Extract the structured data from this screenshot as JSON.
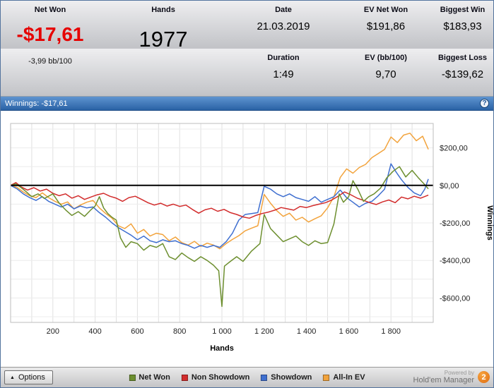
{
  "header": {
    "cells": {
      "date": {
        "label": "Date",
        "value": "21.03.2019"
      },
      "duration": {
        "label": "Duration",
        "value": "1:49"
      },
      "net_won": {
        "label": "Net Won",
        "value": "-$17,61",
        "sub": "-3,99 bb/100",
        "value_color": "#e60000"
      },
      "hands": {
        "label": "Hands",
        "value": "1977"
      },
      "ev_net_won": {
        "label": "EV Net Won",
        "value": "$191,86"
      },
      "ev_bb100": {
        "label": "EV (bb/100)",
        "value": "9,70"
      },
      "biggest_win": {
        "label": "Biggest Win",
        "value": "$183,93"
      },
      "biggest_loss": {
        "label": "Biggest Loss",
        "value": "-$139,62"
      }
    }
  },
  "titlebar": {
    "title": "Winnings: -$17,61",
    "help_icon": "?"
  },
  "chart_data": {
    "type": "line",
    "title": "Winnings: -$17,61",
    "xlabel": "Hands",
    "ylabel": "Winnings",
    "xlim": [
      0,
      2000
    ],
    "ylim": [
      -730,
      330
    ],
    "grid": true,
    "zero_line": 0,
    "legend_position": "bottom",
    "x_ticks": [
      {
        "v": 200,
        "label": "200"
      },
      {
        "v": 400,
        "label": "400"
      },
      {
        "v": 600,
        "label": "600"
      },
      {
        "v": 800,
        "label": "800"
      },
      {
        "v": 1000,
        "label": "1 000"
      },
      {
        "v": 1200,
        "label": "1 200"
      },
      {
        "v": 1400,
        "label": "1 400"
      },
      {
        "v": 1600,
        "label": "1 600"
      },
      {
        "v": 1800,
        "label": "1 800"
      }
    ],
    "y_ticks": [
      {
        "v": 200,
        "label": "$200,00"
      },
      {
        "v": 0,
        "label": "$0,00"
      },
      {
        "v": -200,
        "label": "-$200,00"
      },
      {
        "v": -400,
        "label": "-$400,00"
      },
      {
        "v": -600,
        "label": "-$600,00"
      }
    ],
    "series": [
      {
        "name": "Net Won",
        "color": "#6d8f2f",
        "points": [
          [
            0,
            0
          ],
          [
            25,
            8
          ],
          [
            50,
            -12
          ],
          [
            75,
            -35
          ],
          [
            100,
            -60
          ],
          [
            130,
            -45
          ],
          [
            160,
            -70
          ],
          [
            200,
            -45
          ],
          [
            230,
            -95
          ],
          [
            260,
            -130
          ],
          [
            290,
            -160
          ],
          [
            320,
            -140
          ],
          [
            350,
            -165
          ],
          [
            380,
            -130
          ],
          [
            400,
            -110
          ],
          [
            420,
            -60
          ],
          [
            440,
            -120
          ],
          [
            460,
            -150
          ],
          [
            480,
            -170
          ],
          [
            500,
            -185
          ],
          [
            520,
            -280
          ],
          [
            545,
            -330
          ],
          [
            570,
            -300
          ],
          [
            600,
            -310
          ],
          [
            630,
            -345
          ],
          [
            660,
            -320
          ],
          [
            690,
            -330
          ],
          [
            720,
            -310
          ],
          [
            750,
            -380
          ],
          [
            780,
            -395
          ],
          [
            810,
            -360
          ],
          [
            840,
            -385
          ],
          [
            870,
            -405
          ],
          [
            900,
            -380
          ],
          [
            930,
            -400
          ],
          [
            960,
            -425
          ],
          [
            985,
            -455
          ],
          [
            1000,
            -645
          ],
          [
            1012,
            -430
          ],
          [
            1040,
            -405
          ],
          [
            1070,
            -380
          ],
          [
            1100,
            -405
          ],
          [
            1140,
            -350
          ],
          [
            1180,
            -310
          ],
          [
            1200,
            -155
          ],
          [
            1230,
            -230
          ],
          [
            1260,
            -265
          ],
          [
            1290,
            -300
          ],
          [
            1320,
            -285
          ],
          [
            1350,
            -270
          ],
          [
            1380,
            -300
          ],
          [
            1410,
            -320
          ],
          [
            1440,
            -295
          ],
          [
            1470,
            -310
          ],
          [
            1500,
            -305
          ],
          [
            1530,
            -205
          ],
          [
            1555,
            -45
          ],
          [
            1575,
            -90
          ],
          [
            1600,
            -60
          ],
          [
            1620,
            25
          ],
          [
            1645,
            -25
          ],
          [
            1670,
            -85
          ],
          [
            1695,
            -60
          ],
          [
            1720,
            -45
          ],
          [
            1750,
            -15
          ],
          [
            1780,
            40
          ],
          [
            1810,
            75
          ],
          [
            1840,
            100
          ],
          [
            1870,
            45
          ],
          [
            1900,
            80
          ],
          [
            1930,
            40
          ],
          [
            1955,
            10
          ],
          [
            1977,
            -18
          ]
        ]
      },
      {
        "name": "Non Showdown",
        "color": "#d22c2c",
        "points": [
          [
            0,
            0
          ],
          [
            25,
            15
          ],
          [
            50,
            -8
          ],
          [
            80,
            -25
          ],
          [
            110,
            -12
          ],
          [
            140,
            -30
          ],
          [
            170,
            -20
          ],
          [
            200,
            -42
          ],
          [
            230,
            -55
          ],
          [
            260,
            -45
          ],
          [
            290,
            -68
          ],
          [
            320,
            -55
          ],
          [
            350,
            -75
          ],
          [
            380,
            -62
          ],
          [
            410,
            -50
          ],
          [
            440,
            -42
          ],
          [
            470,
            -58
          ],
          [
            500,
            -68
          ],
          [
            530,
            -85
          ],
          [
            560,
            -65
          ],
          [
            590,
            -58
          ],
          [
            620,
            -75
          ],
          [
            650,
            -92
          ],
          [
            680,
            -105
          ],
          [
            710,
            -95
          ],
          [
            740,
            -110
          ],
          [
            770,
            -100
          ],
          [
            800,
            -112
          ],
          [
            830,
            -105
          ],
          [
            860,
            -128
          ],
          [
            890,
            -148
          ],
          [
            920,
            -130
          ],
          [
            950,
            -122
          ],
          [
            980,
            -138
          ],
          [
            1010,
            -128
          ],
          [
            1040,
            -145
          ],
          [
            1070,
            -155
          ],
          [
            1100,
            -168
          ],
          [
            1130,
            -175
          ],
          [
            1160,
            -160
          ],
          [
            1190,
            -150
          ],
          [
            1220,
            -142
          ],
          [
            1250,
            -132
          ],
          [
            1280,
            -118
          ],
          [
            1310,
            -125
          ],
          [
            1340,
            -132
          ],
          [
            1370,
            -112
          ],
          [
            1400,
            -118
          ],
          [
            1430,
            -108
          ],
          [
            1460,
            -100
          ],
          [
            1490,
            -92
          ],
          [
            1520,
            -78
          ],
          [
            1550,
            -58
          ],
          [
            1580,
            -35
          ],
          [
            1610,
            -50
          ],
          [
            1640,
            -68
          ],
          [
            1670,
            -80
          ],
          [
            1700,
            -92
          ],
          [
            1730,
            -102
          ],
          [
            1760,
            -88
          ],
          [
            1790,
            -78
          ],
          [
            1820,
            -92
          ],
          [
            1850,
            -62
          ],
          [
            1880,
            -72
          ],
          [
            1910,
            -58
          ],
          [
            1940,
            -68
          ],
          [
            1977,
            -52
          ]
        ]
      },
      {
        "name": "Showdown",
        "color": "#3f6fd0",
        "points": [
          [
            0,
            0
          ],
          [
            30,
            -18
          ],
          [
            60,
            -45
          ],
          [
            90,
            -65
          ],
          [
            120,
            -80
          ],
          [
            150,
            -60
          ],
          [
            180,
            -85
          ],
          [
            210,
            -100
          ],
          [
            240,
            -115
          ],
          [
            270,
            -100
          ],
          [
            300,
            -125
          ],
          [
            330,
            -110
          ],
          [
            360,
            -120
          ],
          [
            390,
            -115
          ],
          [
            420,
            -145
          ],
          [
            450,
            -170
          ],
          [
            480,
            -200
          ],
          [
            510,
            -225
          ],
          [
            540,
            -245
          ],
          [
            570,
            -265
          ],
          [
            600,
            -290
          ],
          [
            630,
            -270
          ],
          [
            660,
            -295
          ],
          [
            690,
            -305
          ],
          [
            720,
            -290
          ],
          [
            750,
            -300
          ],
          [
            780,
            -295
          ],
          [
            810,
            -310
          ],
          [
            840,
            -320
          ],
          [
            870,
            -335
          ],
          [
            900,
            -320
          ],
          [
            930,
            -330
          ],
          [
            960,
            -320
          ],
          [
            990,
            -330
          ],
          [
            1020,
            -300
          ],
          [
            1050,
            -255
          ],
          [
            1080,
            -185
          ],
          [
            1110,
            -155
          ],
          [
            1140,
            -150
          ],
          [
            1170,
            -145
          ],
          [
            1200,
            -5
          ],
          [
            1230,
            -20
          ],
          [
            1260,
            -45
          ],
          [
            1290,
            -60
          ],
          [
            1320,
            -45
          ],
          [
            1350,
            -65
          ],
          [
            1380,
            -75
          ],
          [
            1410,
            -85
          ],
          [
            1440,
            -60
          ],
          [
            1470,
            -90
          ],
          [
            1500,
            -75
          ],
          [
            1530,
            -60
          ],
          [
            1560,
            -25
          ],
          [
            1590,
            -65
          ],
          [
            1620,
            -90
          ],
          [
            1650,
            -115
          ],
          [
            1680,
            -95
          ],
          [
            1710,
            -85
          ],
          [
            1740,
            -55
          ],
          [
            1770,
            -20
          ],
          [
            1800,
            115
          ],
          [
            1825,
            70
          ],
          [
            1850,
            30
          ],
          [
            1880,
            -10
          ],
          [
            1910,
            -40
          ],
          [
            1940,
            -55
          ],
          [
            1960,
            -20
          ],
          [
            1977,
            34
          ]
        ]
      },
      {
        "name": "All-In EV",
        "color": "#f2a33c",
        "points": [
          [
            0,
            0
          ],
          [
            30,
            -10
          ],
          [
            60,
            -35
          ],
          [
            90,
            -55
          ],
          [
            120,
            -65
          ],
          [
            150,
            -40
          ],
          [
            180,
            -65
          ],
          [
            210,
            -85
          ],
          [
            240,
            -100
          ],
          [
            270,
            -88
          ],
          [
            300,
            -125
          ],
          [
            330,
            -105
          ],
          [
            360,
            -90
          ],
          [
            390,
            -80
          ],
          [
            420,
            -120
          ],
          [
            450,
            -150
          ],
          [
            480,
            -175
          ],
          [
            510,
            -215
          ],
          [
            540,
            -230
          ],
          [
            570,
            -205
          ],
          [
            600,
            -255
          ],
          [
            630,
            -235
          ],
          [
            660,
            -270
          ],
          [
            690,
            -255
          ],
          [
            720,
            -262
          ],
          [
            750,
            -295
          ],
          [
            780,
            -275
          ],
          [
            810,
            -305
          ],
          [
            840,
            -318
          ],
          [
            870,
            -298
          ],
          [
            900,
            -325
          ],
          [
            930,
            -308
          ],
          [
            960,
            -318
          ],
          [
            990,
            -338
          ],
          [
            1020,
            -310
          ],
          [
            1050,
            -288
          ],
          [
            1080,
            -268
          ],
          [
            1110,
            -242
          ],
          [
            1140,
            -228
          ],
          [
            1170,
            -215
          ],
          [
            1200,
            -48
          ],
          [
            1230,
            -95
          ],
          [
            1260,
            -135
          ],
          [
            1290,
            -165
          ],
          [
            1320,
            -148
          ],
          [
            1350,
            -185
          ],
          [
            1380,
            -170
          ],
          [
            1410,
            -195
          ],
          [
            1440,
            -178
          ],
          [
            1470,
            -162
          ],
          [
            1500,
            -120
          ],
          [
            1530,
            -60
          ],
          [
            1560,
            42
          ],
          [
            1590,
            88
          ],
          [
            1620,
            65
          ],
          [
            1650,
            95
          ],
          [
            1680,
            112
          ],
          [
            1710,
            148
          ],
          [
            1740,
            170
          ],
          [
            1770,
            192
          ],
          [
            1800,
            258
          ],
          [
            1830,
            228
          ],
          [
            1860,
            268
          ],
          [
            1890,
            278
          ],
          [
            1920,
            238
          ],
          [
            1950,
            262
          ],
          [
            1977,
            192
          ]
        ]
      }
    ]
  },
  "footer": {
    "options_button": "Options",
    "caret_icon": "▲",
    "legend": [
      {
        "label": "Net Won",
        "color": "#6d8f2f"
      },
      {
        "label": "Non Showdown",
        "color": "#d22c2c"
      },
      {
        "label": "Showdown",
        "color": "#3f6fd0"
      },
      {
        "label": "All-In EV",
        "color": "#f2a33c"
      }
    ],
    "powered_by": "Powered by",
    "brand": "Hold'em Manager",
    "logo_badge": "2",
    "logo_color": "#e87511"
  }
}
